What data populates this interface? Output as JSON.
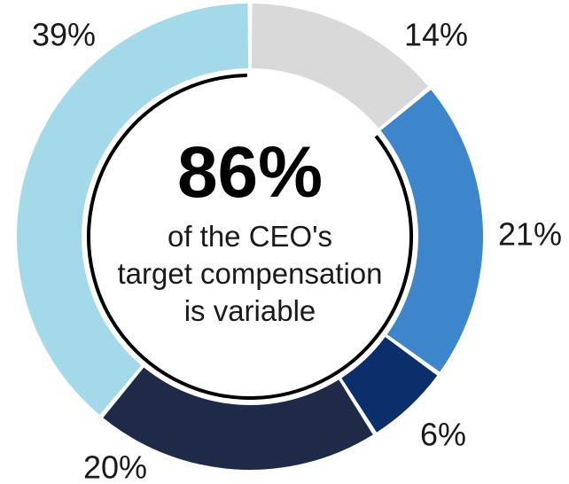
{
  "chart_data": {
    "type": "pie",
    "variant": "donut",
    "slices": [
      {
        "value": 14,
        "label": "14%",
        "color": "#d9d9d9"
      },
      {
        "value": 21,
        "label": "21%",
        "color": "#3e86cc"
      },
      {
        "value": 6,
        "label": "6%",
        "color": "#0b2f6b"
      },
      {
        "value": 20,
        "label": "20%",
        "color": "#1f2a48"
      },
      {
        "value": 39,
        "label": "39%",
        "color": "#a3d9e8"
      }
    ],
    "center": {
      "headline": "86%",
      "lines": [
        "of the CEO's",
        "target compensation",
        "is variable"
      ]
    },
    "legend": "none"
  }
}
